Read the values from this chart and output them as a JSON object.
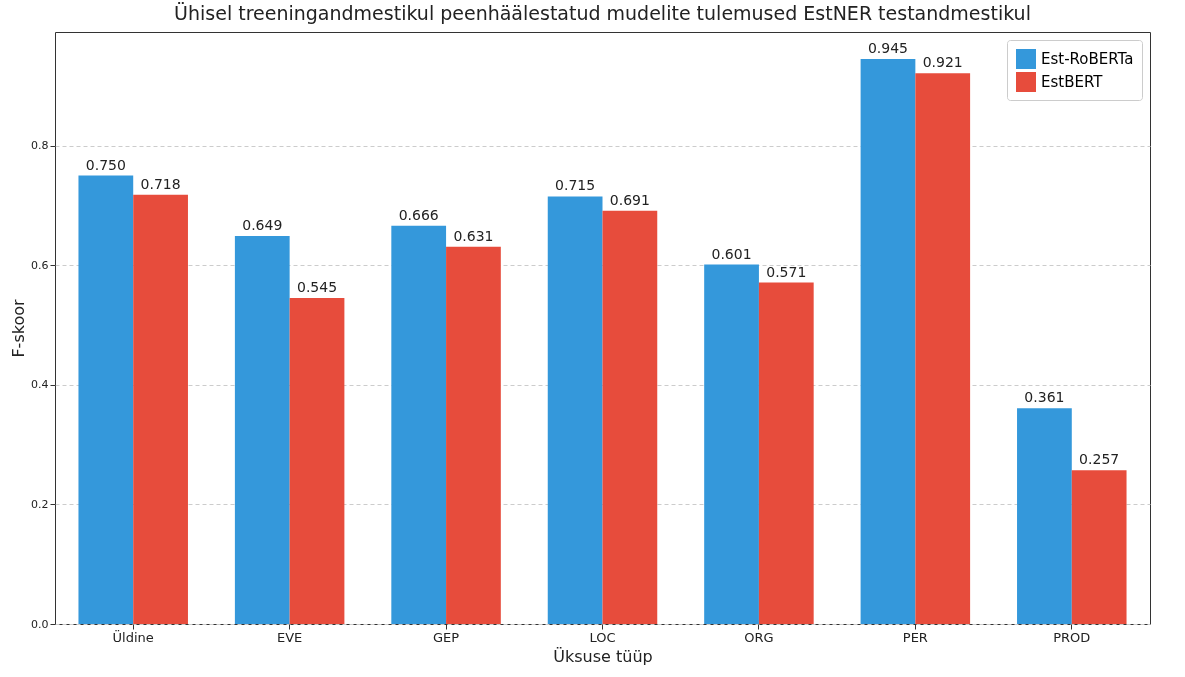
{
  "chart_data": {
    "type": "bar",
    "title": "Ühisel treeningandmestikul peenhäälestatud mudelite tulemused EstNER testandmestikul",
    "xlabel": "Üksuse tüüp",
    "ylabel": "F-skoor",
    "categories": [
      "Üldine",
      "EVE",
      "GEP",
      "LOC",
      "ORG",
      "PER",
      "PROD"
    ],
    "series": [
      {
        "name": "Est-RoBERTa",
        "color": "#3498db",
        "values": [
          0.75,
          0.649,
          0.666,
          0.715,
          0.601,
          0.945,
          0.361
        ],
        "value_labels": [
          "0.750",
          "0.649",
          "0.666",
          "0.715",
          "0.601",
          "0.945",
          "0.361"
        ]
      },
      {
        "name": "EstBERT",
        "color": "#e74c3c",
        "values": [
          0.718,
          0.545,
          0.631,
          0.691,
          0.571,
          0.921,
          0.257
        ],
        "value_labels": [
          "0.718",
          "0.545",
          "0.631",
          "0.691",
          "0.571",
          "0.921",
          "0.257"
        ]
      }
    ],
    "ylim": [
      0,
      0.99
    ],
    "yticks": [
      {
        "value": 0,
        "label": "0.0"
      },
      0.2,
      0.4,
      0.6,
      0.8
    ],
    "grid": "y",
    "legend": "top right"
  }
}
